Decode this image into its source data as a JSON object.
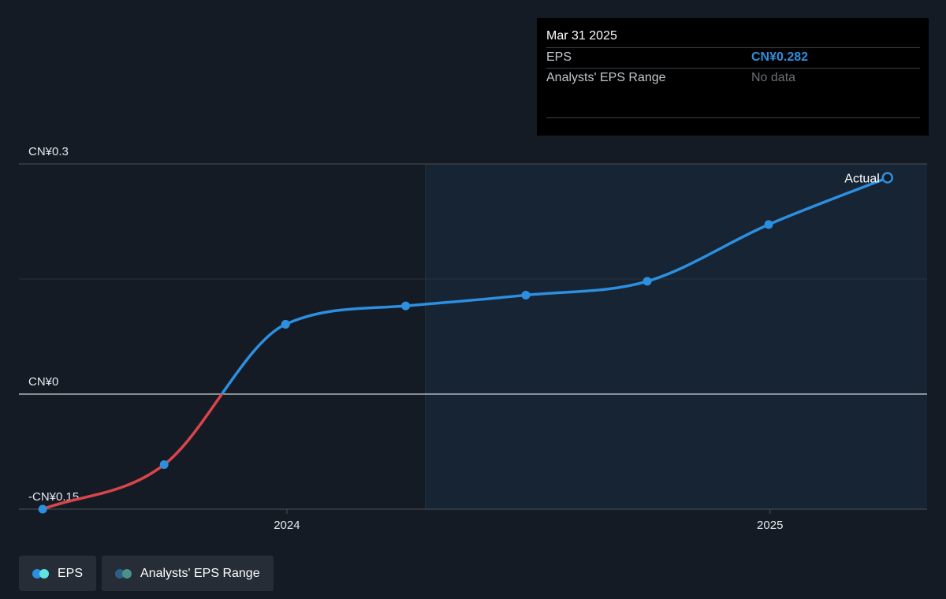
{
  "tooltip": {
    "date": "Mar 31 2025",
    "rows": [
      {
        "key": "EPS",
        "value": "CN¥0.282"
      },
      {
        "key": "Analysts' EPS Range",
        "value": "No data"
      }
    ]
  },
  "legend": [
    {
      "label": "EPS",
      "colors": [
        "#2d8fe0",
        "#5fe3e0"
      ]
    },
    {
      "label": "Analysts' EPS Range",
      "colors": [
        "#2b5f86",
        "#4d8f8a"
      ]
    }
  ],
  "colors": {
    "positive": "#2d8fe0",
    "negative": "#d9454a",
    "forecast_shade": "#172434",
    "background": "#151b24"
  },
  "chart_data": {
    "type": "line",
    "title": "",
    "xlabel": "",
    "ylabel": "",
    "ylim": [
      -0.15,
      0.3
    ],
    "y_ticks": [
      {
        "value": 0.3,
        "label": "CN¥0.3"
      },
      {
        "value": 0,
        "label": "CN¥0"
      },
      {
        "value": -0.15,
        "label": "-CN¥0.15"
      }
    ],
    "x_range": [
      "2023-06-12",
      "2025-04-30"
    ],
    "x_ticks": [
      {
        "date": "2024-01-01",
        "label": "2024"
      },
      {
        "date": "2025-01-01",
        "label": "2025"
      }
    ],
    "forecast_region_start": "2024-04-15",
    "end_label": "Actual",
    "series": [
      {
        "name": "EPS",
        "points": [
          {
            "date": "2023-06-30",
            "value": -0.15
          },
          {
            "date": "2023-09-30",
            "value": -0.092
          },
          {
            "date": "2023-12-31",
            "value": 0.091
          },
          {
            "date": "2024-03-31",
            "value": 0.115
          },
          {
            "date": "2024-06-30",
            "value": 0.129
          },
          {
            "date": "2024-09-30",
            "value": 0.147
          },
          {
            "date": "2024-12-31",
            "value": 0.221
          },
          {
            "date": "2025-03-31",
            "value": 0.282
          }
        ]
      }
    ]
  }
}
